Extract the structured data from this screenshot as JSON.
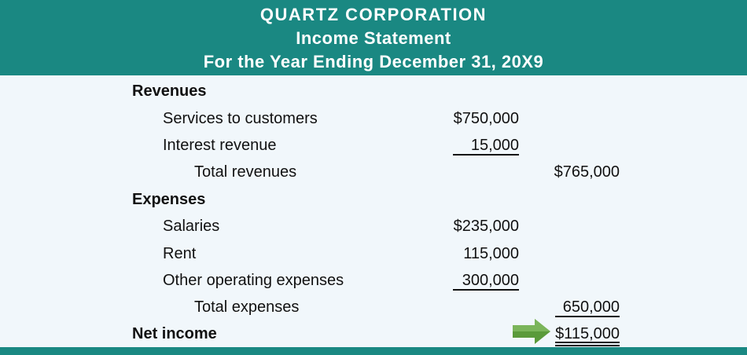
{
  "header": {
    "company": "QUARTZ CORPORATION",
    "statement": "Income Statement",
    "period": "For the Year Ending December 31, 20X9"
  },
  "statement": {
    "revenues_heading": "Revenues",
    "services_label": "Services to customers",
    "services_amount": "$750,000",
    "interest_label": "Interest revenue",
    "interest_amount": "15,000",
    "total_revenues_label": "Total revenues",
    "total_revenues_amount": "$765,000",
    "expenses_heading": "Expenses",
    "salaries_label": "Salaries",
    "salaries_amount": "$235,000",
    "rent_label": "Rent",
    "rent_amount": "115,000",
    "other_label": "Other operating expenses",
    "other_amount": "300,000",
    "total_expenses_label": "Total expenses",
    "total_expenses_amount": "650,000",
    "net_income_label": "Net income",
    "net_income_amount": "$115,000"
  },
  "colors": {
    "header_bg": "#1a8882",
    "page_bg": "#f1f7fb",
    "arrow": "#5a9a3a"
  },
  "icons": {
    "net_income_pointer": "arrow-right-icon"
  }
}
